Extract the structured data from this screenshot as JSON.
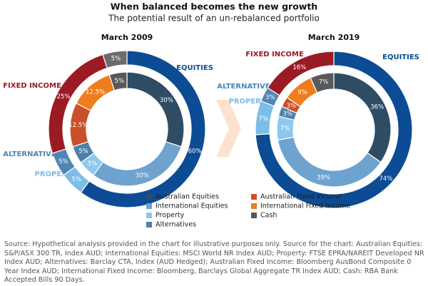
{
  "title": "When balanced becomes the new growth",
  "subtitle": "The potential result of an un-rebalanced portfolio",
  "chart_data": [
    {
      "type": "donut",
      "title": "March 2009",
      "rings": [
        {
          "categories": [
            "EQUITIES",
            "PROPERTY",
            "ALTERNATIVES",
            "FIXED INCOME",
            null
          ],
          "colors": [
            "#0b4c94",
            "#7cbde9",
            "#4f86b4",
            "#9b1b25",
            "#6b6c6e"
          ],
          "values": [
            60,
            5,
            5,
            25,
            5
          ],
          "value_labels": [
            "60%",
            "5%",
            "5%",
            "25%",
            "5%"
          ]
        },
        {
          "categories": [
            "Australian Equities",
            "International Equities",
            "Property",
            "Alternatives",
            "Australian Fixed Income",
            "International Fixed Income",
            "Cash"
          ],
          "colors": [
            "#2e4c64",
            "#6fa3cf",
            "#8dc8ee",
            "#4f80aa",
            "#c9502b",
            "#ef7d1b",
            "#58595b"
          ],
          "values": [
            30,
            30,
            5,
            5,
            12.5,
            12.5,
            5
          ],
          "value_labels": [
            "30%",
            "30%",
            "5%",
            "5%",
            "12.5%",
            "12.5%",
            "5%"
          ]
        }
      ]
    },
    {
      "type": "donut",
      "title": "March 2019",
      "rings": [
        {
          "categories": [
            "EQUITIES",
            "PROPERTY",
            "ALTERNATIVES",
            "FIXED INCOME"
          ],
          "colors": [
            "#0b4c94",
            "#7cbde9",
            "#4f86b4",
            "#9b1b25"
          ],
          "values": [
            74,
            7,
            3,
            16
          ],
          "value_labels": [
            "74%",
            "7%",
            "3%",
            "16%"
          ]
        },
        {
          "categories": [
            "Australian Equities",
            "International Equities",
            "Property",
            "Alternatives",
            "Australian Fixed Income",
            "International Fixed Income",
            "Cash"
          ],
          "colors": [
            "#2e4c64",
            "#6fa3cf",
            "#8dc8ee",
            "#4f80aa",
            "#c9502b",
            "#ef7d1b",
            "#58595b"
          ],
          "values": [
            36,
            39,
            7,
            3,
            3,
            9,
            7
          ],
          "value_labels": [
            "36%",
            "39%",
            "7%",
            "3%",
            "3%",
            "9%",
            "7%"
          ]
        }
      ]
    }
  ],
  "source": "Source: Hypothetical analysis provided in the chart for illustrative purposes only. Source for the chart: Australian Equities: S&P/ASX 300 TR, Index AUD; International Equities: MSCI World NR Index AUD; Property: FTSE EPRA/NAREIT Developed NR Index AUD; Alternatives: Barclay CTA, Index (AUD Hedged); Australian Fixed Income: Bloomberg AusBond Composite 0 Year Index AUD; International Fixed Income: Bloomberg, Barclays Global Aggregate TR Index AUD; Cash: RBA Bank Accepted Bills 90 Days."
}
